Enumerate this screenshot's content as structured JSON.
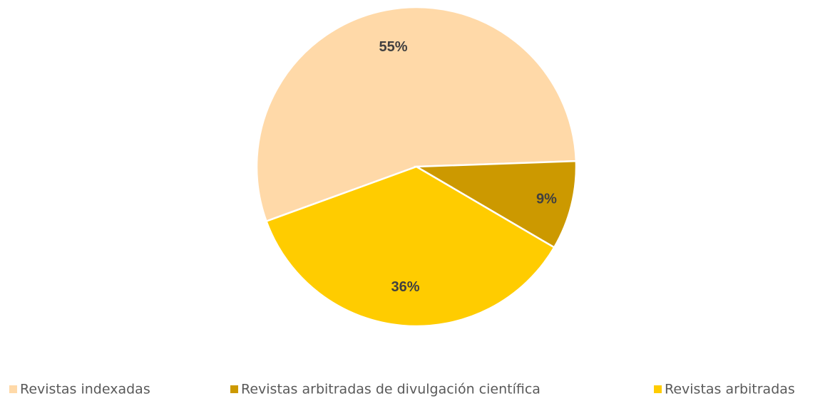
{
  "chart_data": {
    "type": "pie",
    "categories": [
      "Revistas indexadas",
      "Revistas arbitradas de divulgación científica",
      "Revistas arbitradas"
    ],
    "values": [
      55,
      9,
      36
    ],
    "value_labels": [
      "55%",
      "9%",
      "36%"
    ],
    "colors": [
      "#FFD9A8",
      "#CC9900",
      "#FFCC00"
    ],
    "legend": "bottom"
  }
}
